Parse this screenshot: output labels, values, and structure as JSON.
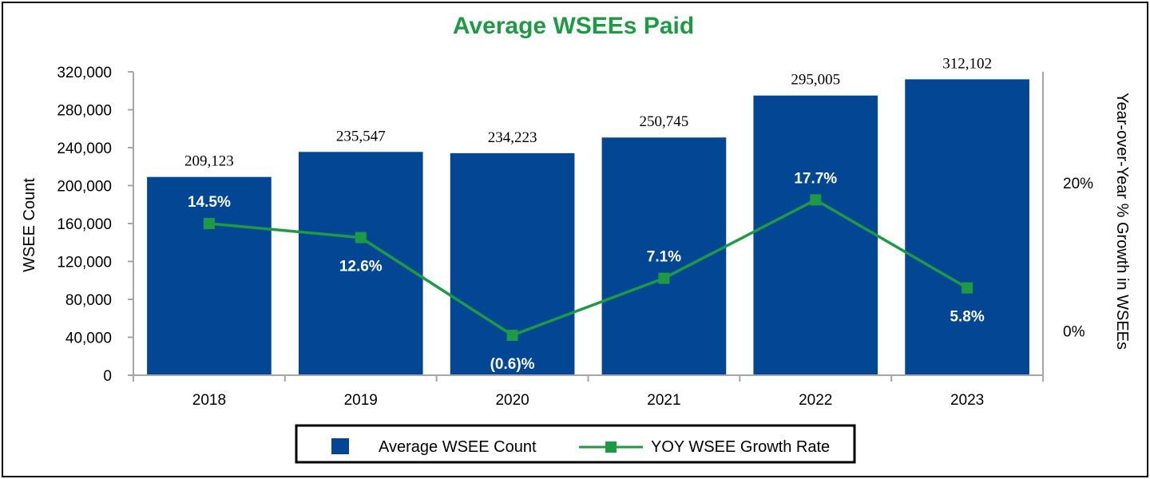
{
  "chart_data": {
    "type": "bar",
    "title": "Average WSEEs Paid",
    "categories": [
      "2018",
      "2019",
      "2020",
      "2021",
      "2022",
      "2023"
    ],
    "series": [
      {
        "name": "Average WSEE Count",
        "type": "bar",
        "axis": "left",
        "values": [
          209123,
          235547,
          234223,
          250745,
          295005,
          312102
        ],
        "labels": [
          "209,123",
          "235,547",
          "234,223",
          "250,745",
          "295,005",
          "312,102"
        ]
      },
      {
        "name": "YOY WSEE Growth Rate",
        "type": "line",
        "axis": "right",
        "values": [
          14.5,
          12.6,
          -0.6,
          7.1,
          17.7,
          5.8
        ],
        "labels": [
          "14.5%",
          "12.6%",
          "(0.6)%",
          "7.1%",
          "17.7%",
          "5.8%"
        ]
      }
    ],
    "ylabel": "WSEE Count",
    "ylim": [
      0,
      320000
    ],
    "yticks": [
      "0",
      "40,000",
      "80,000",
      "120,000",
      "160,000",
      "200,000",
      "240,000",
      "280,000",
      "320,000"
    ],
    "y2label": "Year-over-Year % Growth in WSEEs",
    "y2lim": [
      -6,
      35
    ],
    "y2ticks": [
      {
        "value": 0,
        "label": "0%"
      },
      {
        "value": 20,
        "label": "20%"
      }
    ],
    "legend": {
      "placement": "bottom-center",
      "items": [
        "Average WSEE Count",
        "YOY WSEE Growth Rate"
      ]
    },
    "grid": false
  },
  "colors": {
    "bar": "#034694",
    "line": "#1e9a45",
    "title": "#1e9a45",
    "axis": "#a6a6a6"
  }
}
